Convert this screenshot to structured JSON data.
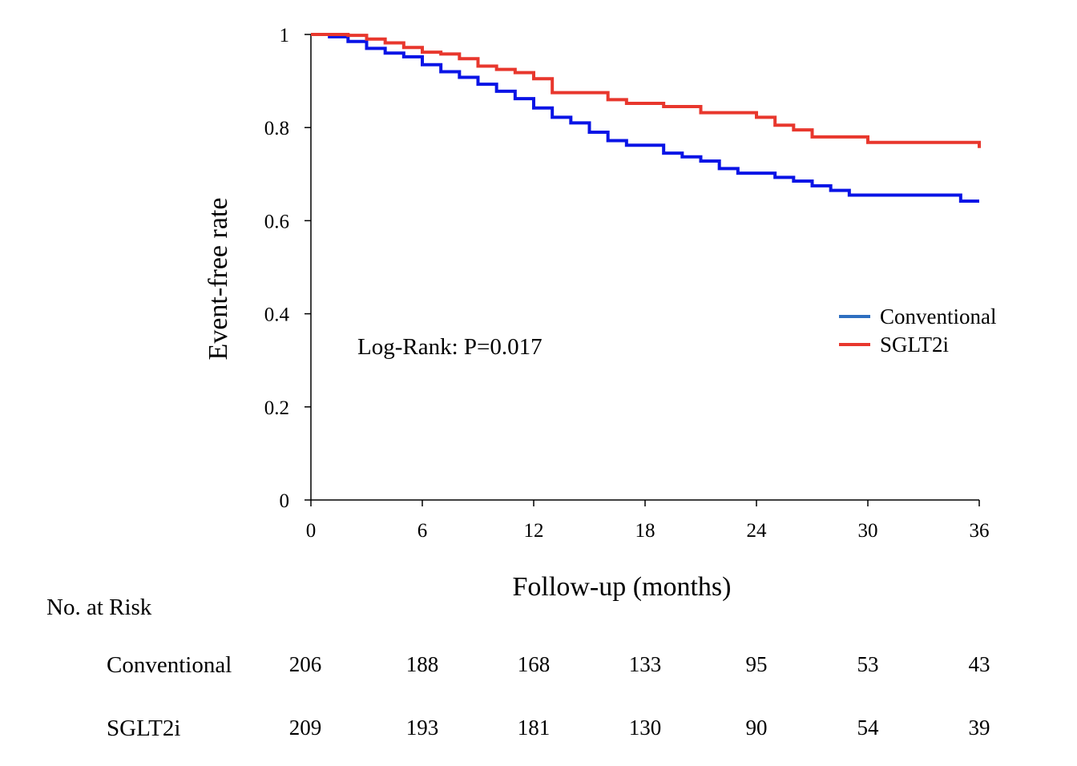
{
  "chart_data": {
    "type": "line",
    "step": true,
    "xlabel": "Follow-up (months)",
    "ylabel": "Event-free rate",
    "xlim": [
      0,
      36
    ],
    "ylim": [
      0,
      1
    ],
    "xticks": [
      0,
      6,
      12,
      18,
      24,
      30,
      36
    ],
    "yticks": [
      0,
      0.2,
      0.4,
      0.6,
      0.8,
      1
    ],
    "ytick_labels": [
      "0",
      "0.2",
      "0.4",
      "0.6",
      "0.8",
      "1"
    ],
    "xtick_labels": [
      "0",
      "6",
      "12",
      "18",
      "24",
      "30",
      "36"
    ],
    "annotation": "Log-Rank: P=0.017",
    "legend_position": "right",
    "grid": false,
    "series": [
      {
        "name": "Conventional",
        "color": "#0a14e6",
        "legend_color": "#2e6fc0",
        "x": [
          0,
          1,
          2,
          3,
          4,
          5,
          6,
          7,
          8,
          9,
          10,
          11,
          12,
          13,
          14,
          15,
          16,
          17,
          19,
          20,
          21,
          22,
          23,
          25,
          26,
          27,
          28,
          29,
          35,
          36
        ],
        "y": [
          1.0,
          0.995,
          0.985,
          0.97,
          0.96,
          0.952,
          0.935,
          0.92,
          0.908,
          0.893,
          0.878,
          0.862,
          0.842,
          0.822,
          0.81,
          0.79,
          0.772,
          0.762,
          0.745,
          0.737,
          0.728,
          0.712,
          0.702,
          0.693,
          0.685,
          0.675,
          0.665,
          0.655,
          0.642,
          0.642
        ]
      },
      {
        "name": "SGLT2i",
        "color": "#e8372d",
        "legend_color": "#e8372d",
        "x": [
          0,
          2,
          3,
          4,
          5,
          6,
          7,
          8,
          9,
          10,
          11,
          12,
          13,
          16,
          17,
          19,
          21,
          24,
          25,
          26,
          27,
          30,
          36
        ],
        "y": [
          1.0,
          0.998,
          0.99,
          0.982,
          0.972,
          0.962,
          0.958,
          0.948,
          0.932,
          0.925,
          0.918,
          0.905,
          0.875,
          0.86,
          0.852,
          0.845,
          0.832,
          0.822,
          0.805,
          0.795,
          0.78,
          0.768,
          0.756
        ]
      }
    ]
  },
  "risk_table": {
    "title": "No. at Risk",
    "rows": [
      {
        "label": "Conventional",
        "values": [
          "206",
          "188",
          "168",
          "133",
          "95",
          "53",
          "43"
        ]
      },
      {
        "label": "SGLT2i",
        "values": [
          "209",
          "193",
          "181",
          "130",
          "90",
          "54",
          "39"
        ]
      }
    ]
  }
}
